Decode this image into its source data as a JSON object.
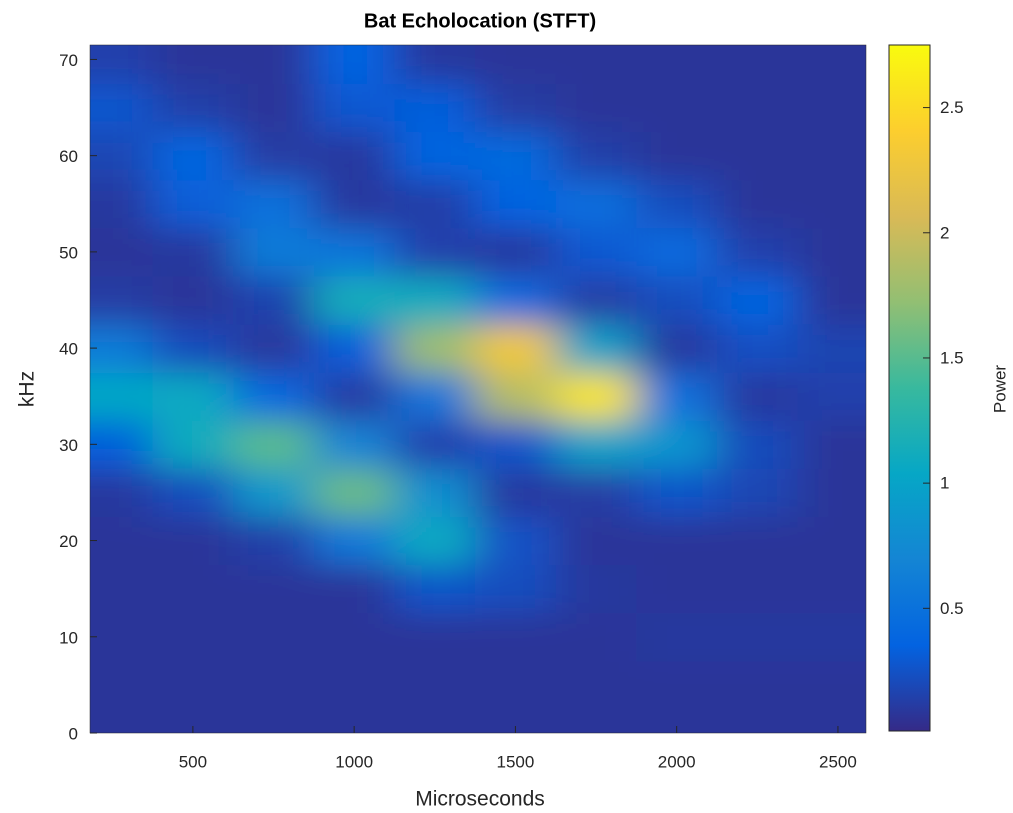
{
  "chart_data": {
    "type": "heatmap",
    "title": "Bat Echolocation (STFT)",
    "x_label": "Microseconds",
    "y_label": "kHz",
    "colorbar_label": "Power",
    "x": [
      250,
      500,
      750,
      1000,
      1250,
      1500,
      1750,
      2000,
      2250,
      2500
    ],
    "y": [
      0,
      5,
      10,
      15,
      20,
      25,
      30,
      35,
      40,
      45,
      50,
      55,
      60,
      65,
      70
    ],
    "z": [
      [
        0.08,
        0.08,
        0.08,
        0.08,
        0.08,
        0.08,
        0.08,
        0.08,
        0.08,
        0.08
      ],
      [
        0.08,
        0.08,
        0.08,
        0.08,
        0.08,
        0.08,
        0.08,
        0.08,
        0.08,
        0.08
      ],
      [
        0.08,
        0.08,
        0.08,
        0.08,
        0.08,
        0.08,
        0.08,
        0.1,
        0.1,
        0.1
      ],
      [
        0.08,
        0.08,
        0.08,
        0.08,
        0.26,
        0.22,
        0.1,
        0.08,
        0.08,
        0.08
      ],
      [
        0.08,
        0.08,
        0.14,
        0.56,
        1.08,
        0.25,
        0.08,
        0.08,
        0.08,
        0.08
      ],
      [
        0.1,
        0.22,
        0.89,
        1.57,
        0.8,
        0.1,
        0.12,
        0.26,
        0.18,
        0.08
      ],
      [
        0.33,
        1.11,
        1.51,
        0.68,
        0.15,
        0.27,
        0.98,
        0.85,
        0.21,
        0.08
      ],
      [
        1.04,
        1.07,
        0.41,
        0.11,
        0.52,
        1.89,
        2.58,
        0.49,
        0.1,
        0.15
      ],
      [
        0.6,
        0.21,
        0.09,
        0.33,
        1.78,
        2.31,
        0.98,
        0.1,
        0.24,
        0.17
      ],
      [
        0.12,
        0.08,
        0.16,
        1.15,
        1.09,
        0.43,
        0.12,
        0.22,
        0.37,
        0.08
      ],
      [
        0.08,
        0.1,
        0.59,
        0.53,
        0.15,
        0.1,
        0.29,
        0.43,
        0.15,
        0.08
      ],
      [
        0.1,
        0.32,
        0.49,
        0.1,
        0.13,
        0.36,
        0.46,
        0.22,
        0.08,
        0.08
      ],
      [
        0.18,
        0.38,
        0.12,
        0.1,
        0.37,
        0.42,
        0.14,
        0.08,
        0.08,
        0.08
      ],
      [
        0.28,
        0.14,
        0.08,
        0.29,
        0.33,
        0.12,
        0.08,
        0.08,
        0.08,
        0.08
      ],
      [
        0.15,
        0.08,
        0.08,
        0.36,
        0.1,
        0.08,
        0.08,
        0.08,
        0.08,
        0.08
      ]
    ],
    "xlim": [
      181,
      2587
    ],
    "ylim": [
      0,
      71.5
    ],
    "xticks": [
      500,
      1000,
      1500,
      2000,
      2500
    ],
    "yticks": [
      0,
      10,
      20,
      30,
      40,
      50,
      60,
      70
    ],
    "clim": [
      0.01,
      2.75
    ],
    "cticks": [
      0.5,
      1,
      1.5,
      2,
      2.5
    ],
    "colormap": [
      "#352a87",
      "#0363e1",
      "#1485d4",
      "#06a7c6",
      "#38b99e",
      "#92bf73",
      "#d9ba56",
      "#fcce2e",
      "#f9fb0e"
    ]
  }
}
